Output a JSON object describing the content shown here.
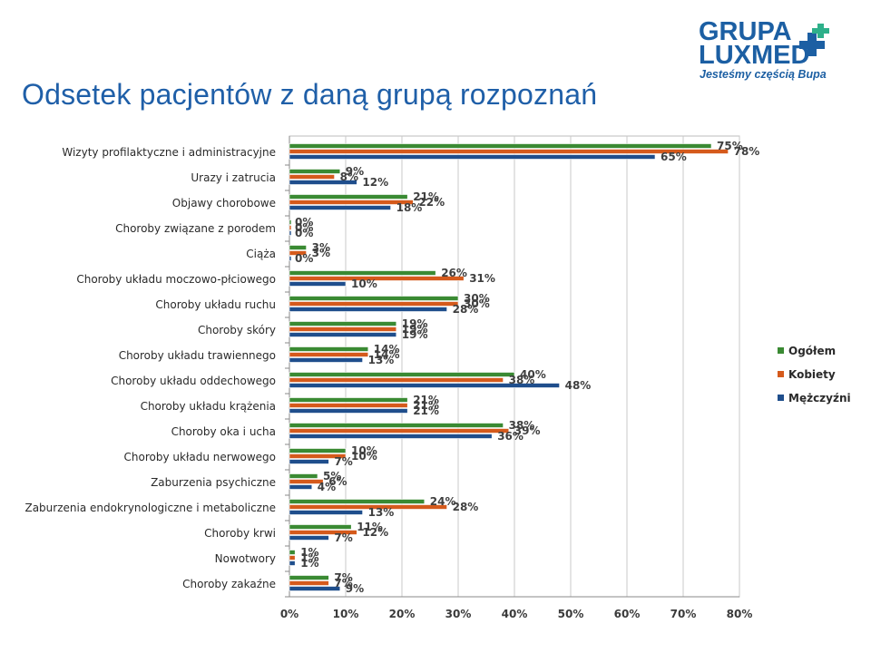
{
  "slide": {
    "title": "Odsetek pacjentów z daną grupą rozpoznań"
  },
  "logo": {
    "line1": "GRUPA",
    "line2": "LUXMED",
    "tagline": "Jesteśmy częścią Bupa",
    "color_primary": "#1c5fa3",
    "color_accent": "#2eb08a"
  },
  "chart_data": {
    "type": "bar",
    "orientation": "horizontal",
    "categories": [
      "Wizyty profilaktyczne i administracyjne",
      "Urazy i zatrucia",
      "Objawy chorobowe",
      "Choroby związane z porodem",
      "Ciąża",
      "Choroby układu moczowo-płciowego",
      "Choroby układu ruchu",
      "Choroby skóry",
      "Choroby układu trawiennego",
      "Choroby układu oddechowego",
      "Choroby układu krążenia",
      "Choroby oka i ucha",
      "Choroby układu nerwowego",
      "Zaburzenia psychiczne",
      "Zaburzenia endokrynologiczne i metaboliczne",
      "Choroby krwi",
      "Nowotwory",
      "Choroby zakaźne"
    ],
    "series": [
      {
        "name": "Ogółem",
        "color": "#3a8a33",
        "values": [
          75,
          9,
          21,
          0,
          3,
          26,
          30,
          19,
          14,
          40,
          21,
          38,
          10,
          5,
          24,
          11,
          1,
          7
        ]
      },
      {
        "name": "Kobiety",
        "color": "#d55a1c",
        "values": [
          78,
          8,
          22,
          0,
          3,
          31,
          30,
          19,
          14,
          38,
          21,
          39,
          10,
          6,
          28,
          12,
          1,
          7
        ]
      },
      {
        "name": "Mężczyźni",
        "color": "#1f4e8c",
        "values": [
          65,
          12,
          18,
          0,
          0,
          10,
          28,
          19,
          13,
          48,
          21,
          36,
          7,
          4,
          13,
          7,
          1,
          9
        ]
      }
    ],
    "data_label_suffix": "%",
    "x_ticks": [
      "0%",
      "10%",
      "20%",
      "30%",
      "40%",
      "50%",
      "60%",
      "70%",
      "80%"
    ],
    "xlim": [
      0,
      80
    ],
    "grid": true,
    "legend_position": "right"
  }
}
